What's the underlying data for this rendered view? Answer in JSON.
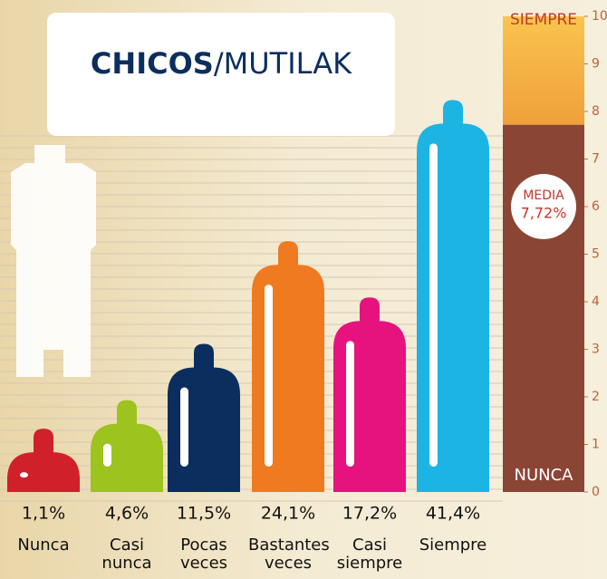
{
  "chart_data": {
    "type": "bar",
    "title_bold": "CHICOS",
    "title_rest": "/MUTILAK",
    "categories": [
      "Nunca",
      "Casi nunca",
      "Pocas veces",
      "Bastantes veces",
      "Casi siempre",
      "Siempre"
    ],
    "values": [
      1.1,
      4.6,
      11.5,
      24.1,
      17.2,
      41.4
    ],
    "value_labels": [
      "1,1%",
      "4,6%",
      "11,5%",
      "24,1%",
      "17,2%",
      "41,4%"
    ],
    "colors": [
      "#d0202a",
      "#9dc31f",
      "#0b2e5e",
      "#f07a1f",
      "#e6137f",
      "#1cb4e3"
    ],
    "scale": {
      "ylim": [
        0,
        10
      ],
      "yticks": [
        0,
        1,
        2,
        3,
        4,
        5,
        6,
        7,
        8,
        9,
        10
      ],
      "top_label": "SIEMPRE",
      "bottom_label": "NUNCA",
      "mean_label": "MEDIA",
      "mean": 7.72,
      "mean_value_label": "7,72%"
    }
  }
}
